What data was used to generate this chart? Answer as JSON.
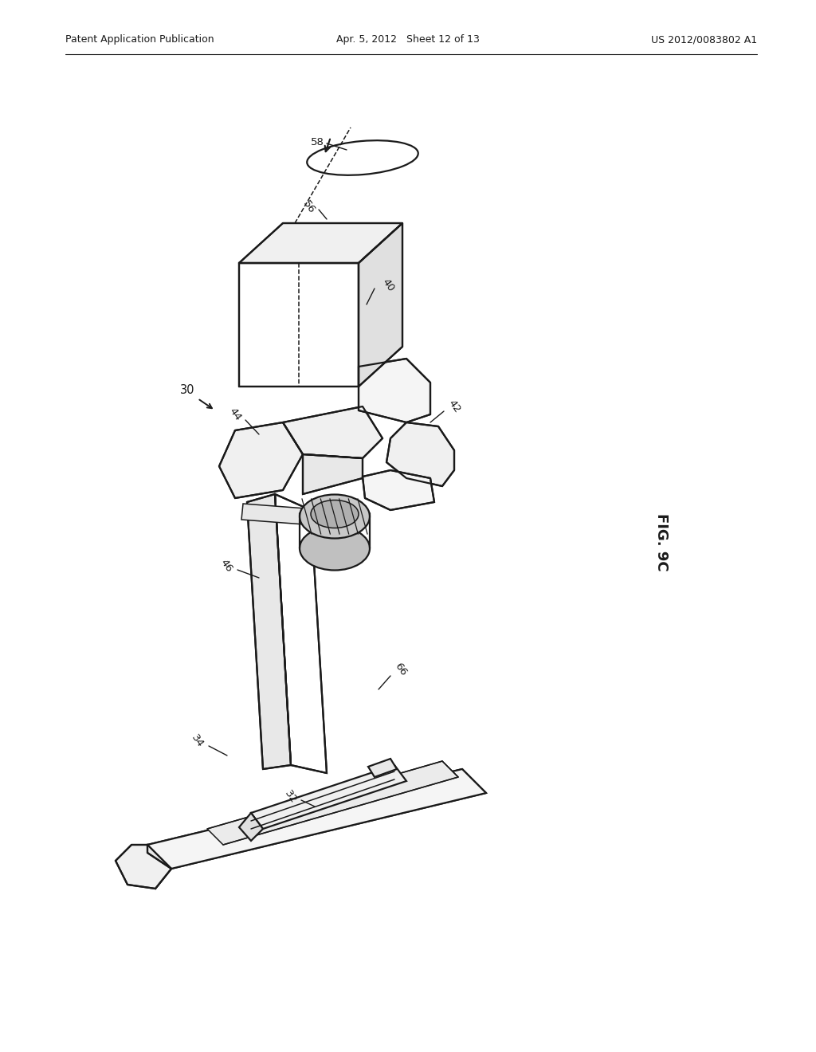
{
  "bg_color": "#ffffff",
  "lc": "#1a1a1a",
  "header_left": "Patent Application Publication",
  "header_center": "Apr. 5, 2012   Sheet 12 of 13",
  "header_right": "US 2012/0083802 A1",
  "fig_label": "FIG. 9C"
}
